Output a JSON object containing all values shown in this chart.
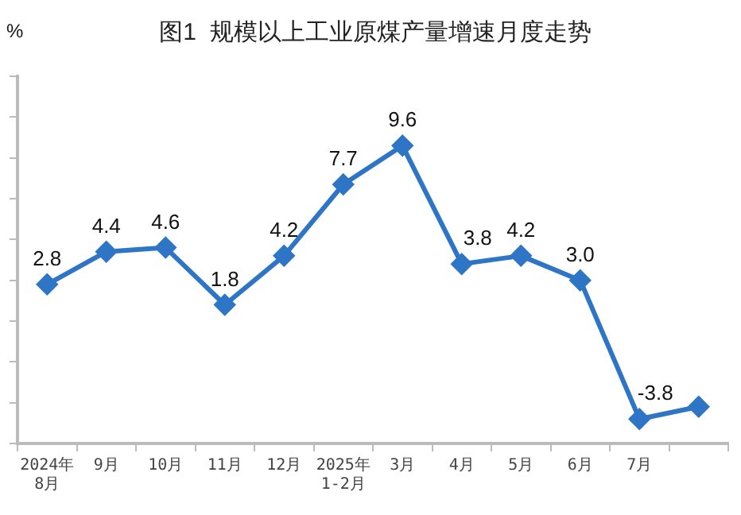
{
  "chart_data": {
    "type": "line",
    "title": "图1  规模以上工业原煤产量增速月度走势",
    "ylabel": "%",
    "categories": [
      "2024年\n8月",
      "9月",
      "10月",
      "11月",
      "12月",
      "2025年\n1-2月",
      "3月",
      "4月",
      "5月",
      "6月",
      "7月",
      null
    ],
    "series": [
      {
        "color": "#2e75c6",
        "values": [
          2.8,
          4.4,
          4.6,
          1.8,
          4.2,
          7.7,
          9.6,
          3.8,
          4.2,
          3.0,
          -3.8,
          -3.2
        ],
        "value_labels": [
          "2.8",
          "4.4",
          "4.6",
          "1.8",
          "4.2",
          "7.7",
          "9.6",
          "3.8",
          "4.2",
          "3.0",
          "-3.8",
          null
        ]
      }
    ],
    "ylim": [
      -5,
      13
    ],
    "yticks": [
      {
        "value": -5,
        "label": null
      },
      {
        "value": -3,
        "label": null
      },
      {
        "value": -1,
        "label": null
      },
      {
        "value": 1,
        "label": null
      },
      {
        "value": 3,
        "label": null
      },
      {
        "value": 5,
        "label": null
      },
      {
        "value": 7,
        "label": null
      },
      {
        "value": 9,
        "label": null
      },
      {
        "value": 11,
        "label": null
      },
      {
        "value": 13,
        "label": null
      }
    ],
    "tick_labels": "x",
    "grid": false,
    "legend": false,
    "marker": "diamond",
    "line_style": "solid"
  }
}
